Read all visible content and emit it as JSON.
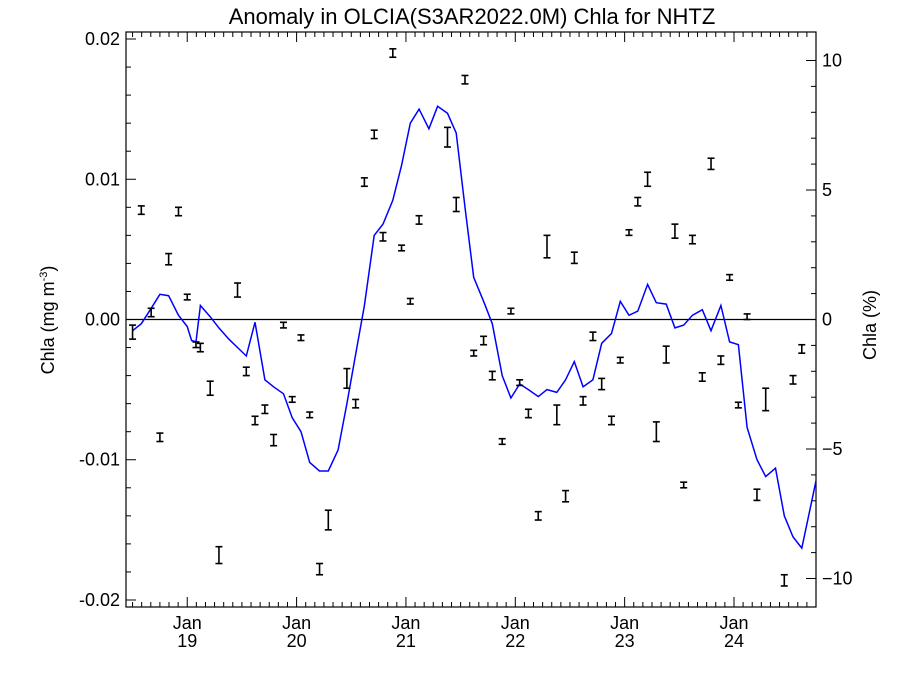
{
  "chart_data": {
    "type": "line",
    "title": "Anomaly in OLCIA(S3AR2022.0M) Chla for NHTZ",
    "ylabel": "Chla (mg m",
    "ylabel_sup": "-3",
    "ylabel_close": ")",
    "y2label": "Chla (%)",
    "ylim": [
      -0.0205,
      0.0205
    ],
    "y2lim": [
      -11.1,
      11.1
    ],
    "xlim": [
      2018.44,
      2024.75
    ],
    "y_ticks": [
      {
        "value": 0.02,
        "label": "0.02"
      },
      {
        "value": 0.01,
        "label": "0.01"
      },
      {
        "value": 0.0,
        "label": "0.00"
      },
      {
        "value": -0.01,
        "label": "-0.01"
      },
      {
        "value": -0.02,
        "label": "-0.02"
      }
    ],
    "y2_ticks": [
      {
        "value": 10,
        "label": "10"
      },
      {
        "value": 5,
        "label": "5"
      },
      {
        "value": 0,
        "label": "0"
      },
      {
        "value": -5,
        "label": "−5"
      },
      {
        "value": -10,
        "label": "−10"
      }
    ],
    "x_ticks": [
      {
        "value": 2019.0,
        "month": "Jan",
        "year": "19"
      },
      {
        "value": 2020.0,
        "month": "Jan",
        "year": "20"
      },
      {
        "value": 2021.0,
        "month": "Jan",
        "year": "21"
      },
      {
        "value": 2022.0,
        "month": "Jan",
        "year": "22"
      },
      {
        "value": 2023.0,
        "month": "Jan",
        "year": "23"
      },
      {
        "value": 2024.0,
        "month": "Jan",
        "year": "24"
      }
    ],
    "grid": false,
    "zero_line": true,
    "series": [
      {
        "kind": "line",
        "color": "#0000ff",
        "points": [
          [
            2018.5,
            -0.0008
          ],
          [
            2018.58,
            -0.0003
          ],
          [
            2018.67,
            0.0008
          ],
          [
            2018.75,
            0.0018
          ],
          [
            2018.83,
            0.0017
          ],
          [
            2018.92,
            0.0003
          ],
          [
            2019.0,
            -0.0005
          ],
          [
            2019.04,
            -0.0015
          ],
          [
            2019.08,
            -0.0016
          ],
          [
            2019.12,
            0.001
          ],
          [
            2019.21,
            0.0002
          ],
          [
            2019.29,
            -0.0006
          ],
          [
            2019.38,
            -0.0014
          ],
          [
            2019.46,
            -0.002
          ],
          [
            2019.54,
            -0.0026
          ],
          [
            2019.62,
            -0.0002
          ],
          [
            2019.71,
            -0.0043
          ],
          [
            2019.79,
            -0.0048
          ],
          [
            2019.88,
            -0.0053
          ],
          [
            2019.96,
            -0.007
          ],
          [
            2020.04,
            -0.008
          ],
          [
            2020.12,
            -0.0102
          ],
          [
            2020.21,
            -0.0108
          ],
          [
            2020.29,
            -0.0108
          ],
          [
            2020.38,
            -0.0093
          ],
          [
            2020.46,
            -0.006
          ],
          [
            2020.54,
            -0.0025
          ],
          [
            2020.62,
            0.001
          ],
          [
            2020.71,
            0.006
          ],
          [
            2020.79,
            0.0068
          ],
          [
            2020.88,
            0.0085
          ],
          [
            2020.96,
            0.011
          ],
          [
            2021.04,
            0.014
          ],
          [
            2021.12,
            0.015
          ],
          [
            2021.21,
            0.0136
          ],
          [
            2021.29,
            0.0152
          ],
          [
            2021.38,
            0.0147
          ],
          [
            2021.46,
            0.0133
          ],
          [
            2021.54,
            0.008
          ],
          [
            2021.62,
            0.003
          ],
          [
            2021.71,
            0.0013
          ],
          [
            2021.79,
            -0.0003
          ],
          [
            2021.88,
            -0.004
          ],
          [
            2021.96,
            -0.0056
          ],
          [
            2022.04,
            -0.0046
          ],
          [
            2022.12,
            -0.005
          ],
          [
            2022.21,
            -0.0055
          ],
          [
            2022.29,
            -0.005
          ],
          [
            2022.38,
            -0.0052
          ],
          [
            2022.46,
            -0.0043
          ],
          [
            2022.54,
            -0.003
          ],
          [
            2022.62,
            -0.0048
          ],
          [
            2022.71,
            -0.0043
          ],
          [
            2022.79,
            -0.0017
          ],
          [
            2022.88,
            -0.001
          ],
          [
            2022.96,
            0.0013
          ],
          [
            2023.04,
            0.0003
          ],
          [
            2023.12,
            0.0006
          ],
          [
            2023.21,
            0.0025
          ],
          [
            2023.29,
            0.0012
          ],
          [
            2023.38,
            0.0011
          ],
          [
            2023.46,
            -0.0006
          ],
          [
            2023.54,
            -0.0004
          ],
          [
            2023.62,
            0.0003
          ],
          [
            2023.71,
            0.0007
          ],
          [
            2023.79,
            -0.0008
          ],
          [
            2023.88,
            0.001
          ],
          [
            2023.96,
            -0.0016
          ],
          [
            2024.04,
            -0.0018
          ],
          [
            2024.12,
            -0.0077
          ],
          [
            2024.21,
            -0.01
          ],
          [
            2024.29,
            -0.0112
          ],
          [
            2024.38,
            -0.0106
          ],
          [
            2024.46,
            -0.014
          ],
          [
            2024.54,
            -0.0155
          ],
          [
            2024.62,
            -0.0163
          ],
          [
            2024.71,
            -0.013
          ],
          [
            2024.75,
            -0.0115
          ]
        ]
      },
      {
        "kind": "errorbar",
        "color": "#000000",
        "points": [
          [
            2018.5,
            -0.0009,
            0.0005
          ],
          [
            2018.58,
            0.0078,
            0.0003
          ],
          [
            2018.67,
            0.0005,
            0.0003
          ],
          [
            2018.75,
            -0.0084,
            0.0003
          ],
          [
            2018.83,
            0.0043,
            0.0004
          ],
          [
            2018.92,
            0.0077,
            0.0003
          ],
          [
            2019.0,
            0.0016,
            0.0002
          ],
          [
            2019.08,
            -0.0018,
            0.0002
          ],
          [
            2019.12,
            -0.002,
            0.0003
          ],
          [
            2019.21,
            -0.0049,
            0.0005
          ],
          [
            2019.29,
            -0.0168,
            0.0006
          ],
          [
            2019.46,
            0.0021,
            0.0005
          ],
          [
            2019.54,
            -0.0037,
            0.0003
          ],
          [
            2019.62,
            -0.0072,
            0.0003
          ],
          [
            2019.71,
            -0.0064,
            0.0003
          ],
          [
            2019.79,
            -0.0086,
            0.0004
          ],
          [
            2019.88,
            -0.0004,
            0.0002
          ],
          [
            2019.96,
            -0.0057,
            0.0002
          ],
          [
            2020.04,
            -0.0013,
            0.0002
          ],
          [
            2020.12,
            -0.0068,
            0.0002
          ],
          [
            2020.21,
            -0.0178,
            0.0004
          ],
          [
            2020.29,
            -0.0143,
            0.0007
          ],
          [
            2020.46,
            -0.0042,
            0.0007
          ],
          [
            2020.54,
            -0.006,
            0.0003
          ],
          [
            2020.62,
            0.0098,
            0.0003
          ],
          [
            2020.71,
            0.0132,
            0.0003
          ],
          [
            2020.79,
            0.0059,
            0.0003
          ],
          [
            2020.88,
            0.019,
            0.0003
          ],
          [
            2020.96,
            0.0051,
            0.0002
          ],
          [
            2021.04,
            0.0013,
            0.0002
          ],
          [
            2021.12,
            0.0071,
            0.0003
          ],
          [
            2021.38,
            0.013,
            0.0007
          ],
          [
            2021.46,
            0.0082,
            0.0005
          ],
          [
            2021.54,
            0.0171,
            0.0003
          ],
          [
            2021.62,
            -0.0024,
            0.0002
          ],
          [
            2021.71,
            -0.0015,
            0.0003
          ],
          [
            2021.79,
            -0.004,
            0.0003
          ],
          [
            2021.88,
            -0.0087,
            0.0002
          ],
          [
            2021.96,
            0.0006,
            0.0002
          ],
          [
            2022.04,
            -0.0045,
            0.0002
          ],
          [
            2022.12,
            -0.0067,
            0.0003
          ],
          [
            2022.21,
            -0.014,
            0.0003
          ],
          [
            2022.29,
            0.0052,
            0.0008
          ],
          [
            2022.38,
            -0.0068,
            0.0007
          ],
          [
            2022.46,
            -0.0126,
            0.0004
          ],
          [
            2022.54,
            0.0044,
            0.0004
          ],
          [
            2022.62,
            -0.0058,
            0.0003
          ],
          [
            2022.71,
            -0.0012,
            0.0003
          ],
          [
            2022.79,
            -0.0046,
            0.0004
          ],
          [
            2022.88,
            -0.0072,
            0.0003
          ],
          [
            2022.96,
            -0.0029,
            0.0002
          ],
          [
            2023.04,
            0.0062,
            0.0002
          ],
          [
            2023.12,
            0.0084,
            0.0003
          ],
          [
            2023.21,
            0.01,
            0.0005
          ],
          [
            2023.29,
            -0.008,
            0.0007
          ],
          [
            2023.38,
            -0.0025,
            0.0006
          ],
          [
            2023.46,
            0.0063,
            0.0005
          ],
          [
            2023.54,
            -0.0118,
            0.0002
          ],
          [
            2023.62,
            0.0057,
            0.0003
          ],
          [
            2023.71,
            -0.0041,
            0.0003
          ],
          [
            2023.79,
            0.0111,
            0.0004
          ],
          [
            2023.88,
            -0.0029,
            0.0003
          ],
          [
            2023.96,
            0.003,
            0.0002
          ],
          [
            2024.04,
            -0.0061,
            0.0002
          ],
          [
            2024.12,
            0.0002,
            0.0002
          ],
          [
            2024.21,
            -0.0125,
            0.0004
          ],
          [
            2024.29,
            -0.0057,
            0.0008
          ],
          [
            2024.46,
            -0.0186,
            0.0004
          ],
          [
            2024.54,
            -0.0043,
            0.0003
          ],
          [
            2024.62,
            -0.0021,
            0.0003
          ]
        ]
      }
    ]
  }
}
